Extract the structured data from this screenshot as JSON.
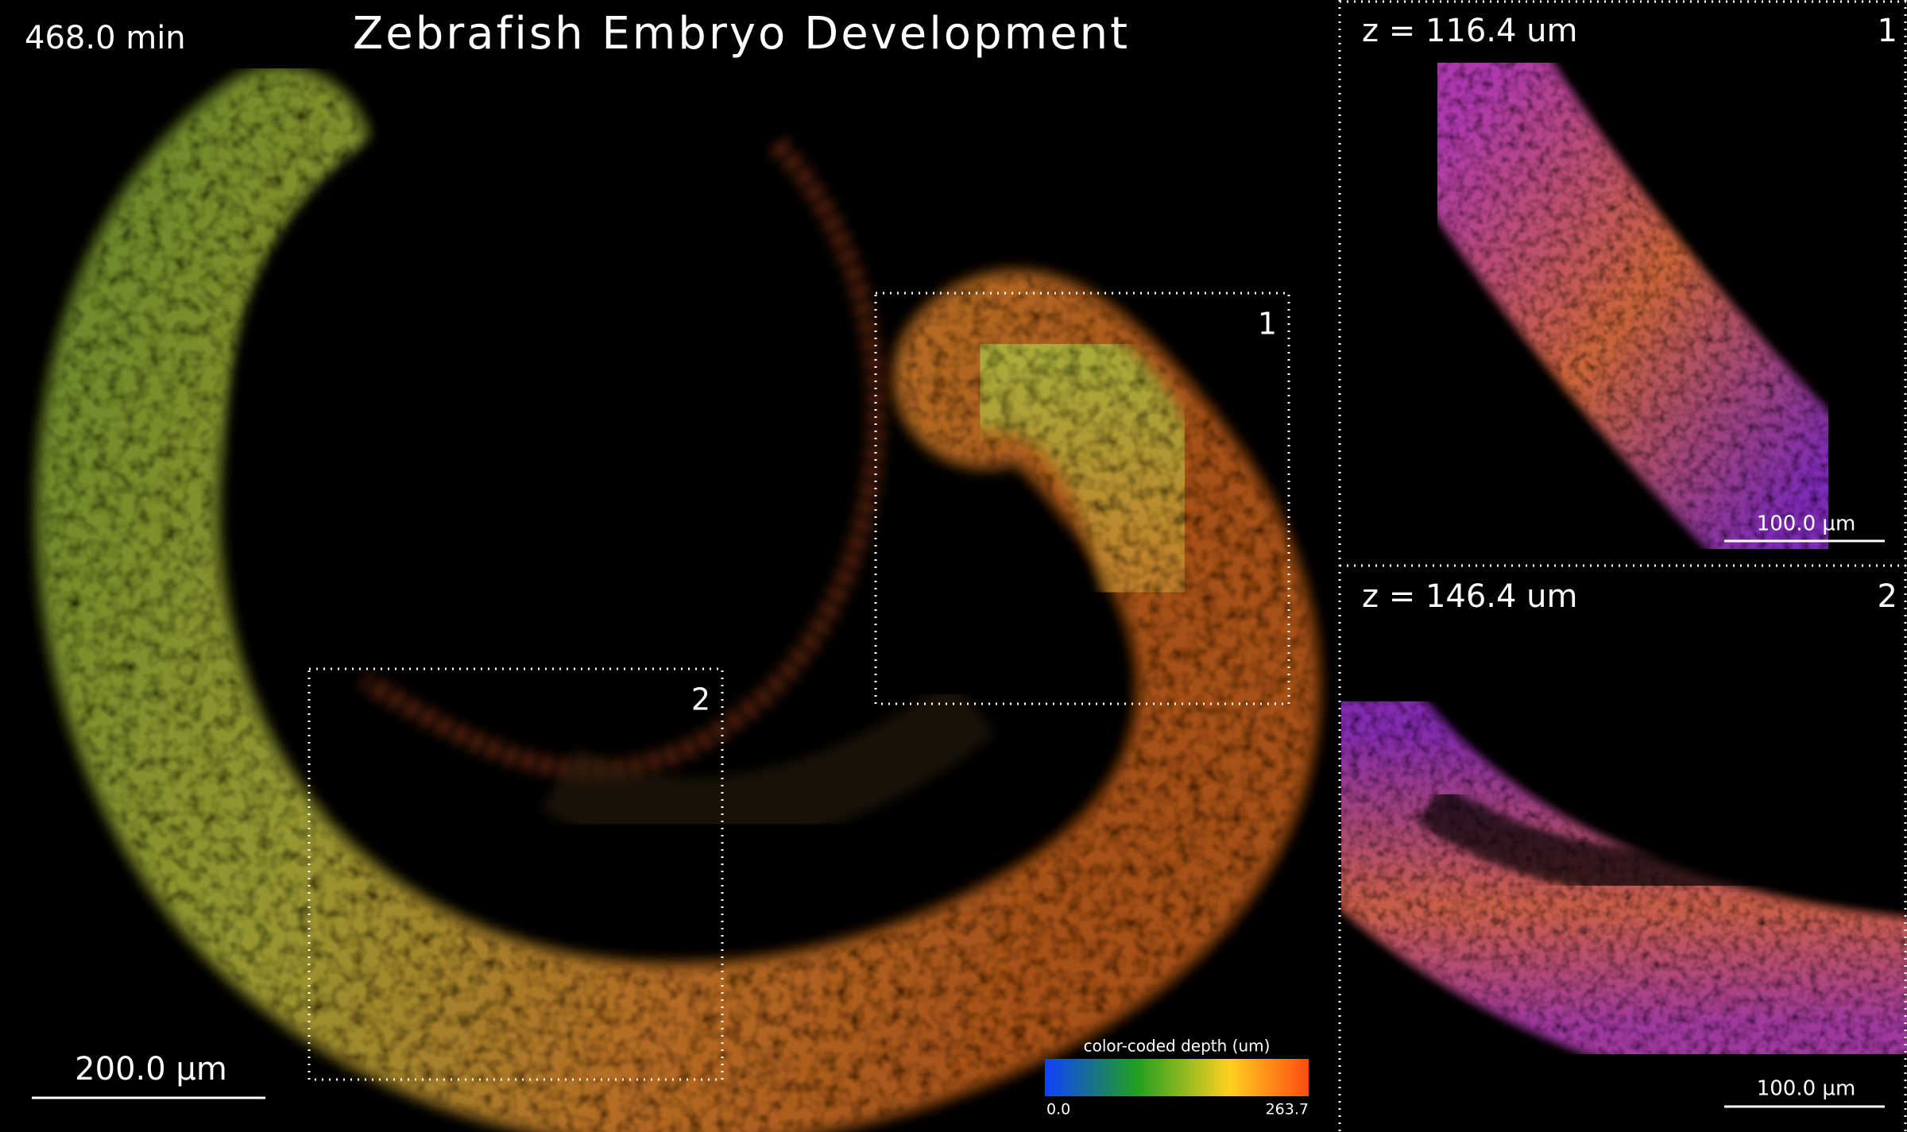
{
  "header": {
    "time": "468.0 min",
    "title": "Zebrafish Embryo Development"
  },
  "main_view": {
    "scale_bar": "200.0 µm",
    "colorbar": {
      "label": "color-coded depth (um)",
      "min": "0.0",
      "max": "263.7"
    },
    "regions": [
      {
        "label": "1"
      },
      {
        "label": "2"
      }
    ]
  },
  "insets": [
    {
      "label": "1",
      "z": "z = 116.4 um",
      "scale_bar": "100.0 µm"
    },
    {
      "label": "2",
      "z": "z = 146.4 um",
      "scale_bar": "100.0 µm"
    }
  ]
}
